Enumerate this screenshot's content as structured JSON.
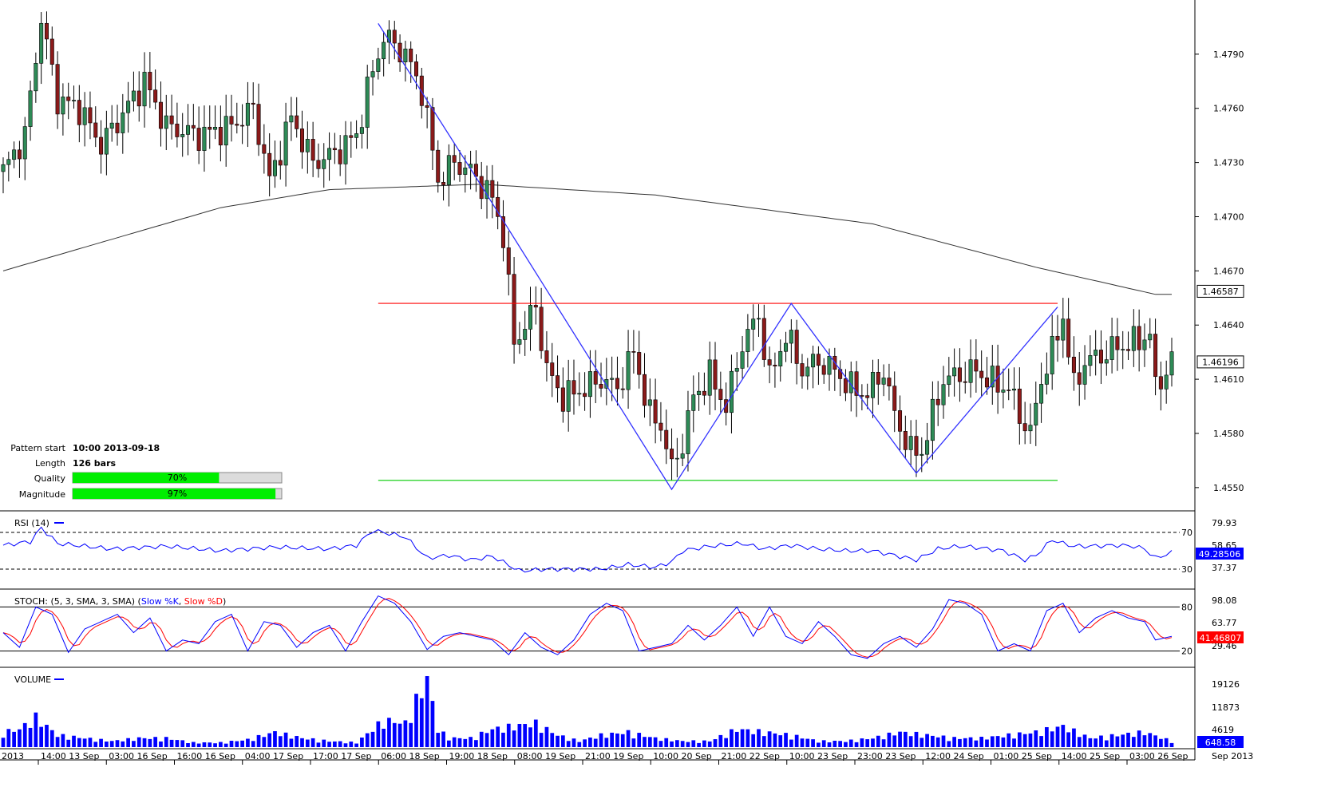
{
  "info_box": {
    "pattern_start_label": "Pattern start",
    "pattern_start_value": "10:00 2013-09-18",
    "length_label": "Length",
    "length_value": "126 bars",
    "quality_label": "Quality",
    "quality_value": "70%",
    "quality_fraction": 0.7,
    "magnitude_label": "Magnitude",
    "magnitude_value": "97%",
    "magnitude_fraction": 0.97
  },
  "colors": {
    "bull": "#2e8b57",
    "bear": "#8b1a1a",
    "ma": "#333333",
    "pattern_line": "#3333ff",
    "resistance": "#ff0000",
    "support": "#00cc00",
    "slow_k": "#0000ff",
    "slow_d": "#ff0000",
    "volume": "#0000ff",
    "bar_fill": "#00ee00",
    "tag_bg": "#0000ff"
  },
  "chart_data": [
    {
      "type": "candlestick",
      "title": "",
      "ylim": [
        1.4538,
        1.482
      ],
      "y_ticks": [
        "1.4790",
        "1.4760",
        "1.4730",
        "1.4700",
        "1.4670",
        "1.4640",
        "1.4610",
        "1.4580",
        "1.4550"
      ],
      "price_tags": {
        "upper": "1.46587",
        "current": "1.46196"
      },
      "price_tag_values": {
        "upper": 1.46587,
        "current": 1.46196
      },
      "resistance_level": 1.4652,
      "support_level": 1.4554,
      "pattern_points": [
        {
          "bar": 69,
          "price": 1.4807
        },
        {
          "bar": 88,
          "price": 1.4717
        },
        {
          "bar": 123,
          "price": 1.4549
        },
        {
          "bar": 145,
          "price": 1.4652
        },
        {
          "bar": 168,
          "price": 1.4558
        },
        {
          "bar": 194,
          "price": 1.465
        }
      ],
      "ma_anchor_points": [
        [
          0,
          1.467
        ],
        [
          40,
          1.4705
        ],
        [
          60,
          1.4715
        ],
        [
          88,
          1.4718
        ],
        [
          120,
          1.4712
        ],
        [
          160,
          1.4696
        ],
        [
          190,
          1.4672
        ],
        [
          212,
          1.4657
        ]
      ],
      "x_tick_labels": [
        "2013",
        "14:00 13 Sep",
        "03:00 16 Sep",
        "16:00 16 Sep",
        "04:00 17 Sep",
        "17:00 17 Sep",
        "06:00 18 Sep",
        "19:00 18 Sep",
        "08:00 19 Sep",
        "21:00 19 Sep",
        "10:00 20 Sep",
        "21:00 22 Sep",
        "10:00 23 Sep",
        "23:00 23 Sep",
        "12:00 24 Sep",
        "01:00 25 Sep",
        "14:00 25 Sep",
        "03:00 26 Sep",
        "Sep 2013"
      ],
      "close_anchors": [
        [
          0,
          1.4725
        ],
        [
          4,
          1.4745
        ],
        [
          7,
          1.481
        ],
        [
          10,
          1.4765
        ],
        [
          14,
          1.476
        ],
        [
          18,
          1.474
        ],
        [
          22,
          1.4757
        ],
        [
          26,
          1.4775
        ],
        [
          30,
          1.475
        ],
        [
          36,
          1.4745
        ],
        [
          42,
          1.475
        ],
        [
          46,
          1.476
        ],
        [
          49,
          1.472
        ],
        [
          53,
          1.4755
        ],
        [
          57,
          1.473
        ],
        [
          61,
          1.4735
        ],
        [
          65,
          1.4745
        ],
        [
          67,
          1.477
        ],
        [
          70,
          1.48
        ],
        [
          74,
          1.479
        ],
        [
          77,
          1.477
        ],
        [
          80,
          1.472
        ],
        [
          83,
          1.473
        ],
        [
          86,
          1.4725
        ],
        [
          88,
          1.4718
        ],
        [
          90,
          1.471
        ],
        [
          92,
          1.469
        ],
        [
          94,
          1.463
        ],
        [
          96,
          1.464
        ],
        [
          98,
          1.465
        ],
        [
          100,
          1.4615
        ],
        [
          103,
          1.46
        ],
        [
          107,
          1.4605
        ],
        [
          110,
          1.461
        ],
        [
          113,
          1.4605
        ],
        [
          116,
          1.4625
        ],
        [
          119,
          1.459
        ],
        [
          121,
          1.4585
        ],
        [
          123,
          1.456
        ],
        [
          125,
          1.4575
        ],
        [
          127,
          1.46
        ],
        [
          130,
          1.4612
        ],
        [
          133,
          1.4595
        ],
        [
          136,
          1.463
        ],
        [
          139,
          1.4645
        ],
        [
          141,
          1.461
        ],
        [
          144,
          1.4635
        ],
        [
          147,
          1.4615
        ],
        [
          150,
          1.462
        ],
        [
          153,
          1.4615
        ],
        [
          156,
          1.4605
        ],
        [
          159,
          1.4602
        ],
        [
          162,
          1.4615
        ],
        [
          164,
          1.459
        ],
        [
          167,
          1.457
        ],
        [
          169,
          1.457
        ],
        [
          171,
          1.459
        ],
        [
          173,
          1.461
        ],
        [
          176,
          1.4612
        ],
        [
          179,
          1.4615
        ],
        [
          182,
          1.4608
        ],
        [
          185,
          1.4605
        ],
        [
          187,
          1.459
        ],
        [
          189,
          1.458
        ],
        [
          191,
          1.461
        ],
        [
          193,
          1.4625
        ],
        [
          195,
          1.4645
        ],
        [
          197,
          1.4605
        ],
        [
          199,
          1.462
        ],
        [
          202,
          1.4623
        ],
        [
          205,
          1.4628
        ],
        [
          208,
          1.463
        ],
        [
          211,
          1.4635
        ],
        [
          212,
          1.4605
        ],
        [
          215,
          1.462
        ]
      ],
      "candle_count": 216
    },
    {
      "type": "line",
      "title": "RSI (14)",
      "ylim": [
        10,
        90
      ],
      "levels": [
        70,
        30
      ],
      "level_labels": [
        "70",
        "30"
      ],
      "y_ticks": [
        "79.93",
        "58.65",
        "37.37"
      ],
      "current_value": "49.28506",
      "anchors": [
        [
          0,
          56
        ],
        [
          5,
          60
        ],
        [
          7,
          75
        ],
        [
          10,
          58
        ],
        [
          15,
          55
        ],
        [
          20,
          52
        ],
        [
          30,
          55
        ],
        [
          40,
          50
        ],
        [
          50,
          54
        ],
        [
          60,
          52
        ],
        [
          65,
          56
        ],
        [
          68,
          72
        ],
        [
          70,
          70
        ],
        [
          74,
          65
        ],
        [
          78,
          42
        ],
        [
          82,
          45
        ],
        [
          86,
          40
        ],
        [
          90,
          44
        ],
        [
          95,
          28
        ],
        [
          100,
          30
        ],
        [
          110,
          30
        ],
        [
          115,
          35
        ],
        [
          120,
          32
        ],
        [
          123,
          38
        ],
        [
          125,
          50
        ],
        [
          130,
          55
        ],
        [
          136,
          58
        ],
        [
          140,
          52
        ],
        [
          145,
          56
        ],
        [
          150,
          52
        ],
        [
          155,
          50
        ],
        [
          160,
          50
        ],
        [
          164,
          45
        ],
        [
          168,
          40
        ],
        [
          172,
          52
        ],
        [
          176,
          55
        ],
        [
          180,
          53
        ],
        [
          184,
          50
        ],
        [
          188,
          40
        ],
        [
          190,
          45
        ],
        [
          193,
          62
        ],
        [
          195,
          58
        ],
        [
          197,
          55
        ],
        [
          200,
          55
        ],
        [
          205,
          56
        ],
        [
          208,
          55
        ],
        [
          210,
          52
        ],
        [
          212,
          42
        ],
        [
          215,
          48
        ]
      ]
    },
    {
      "type": "line",
      "title": "STOCH: (5, 3, SMA, 3, SMA)",
      "legend": [
        "Slow %K",
        "Slow %D"
      ],
      "ylim": [
        0,
        100
      ],
      "levels": [
        80,
        20
      ],
      "level_labels": [
        "80",
        "20"
      ],
      "y_ticks": [
        "98.08",
        "63.77",
        "29.46"
      ],
      "current_value": "41.46807",
      "k_anchors": [
        [
          0,
          45
        ],
        [
          3,
          25
        ],
        [
          6,
          80
        ],
        [
          9,
          70
        ],
        [
          12,
          18
        ],
        [
          15,
          50
        ],
        [
          18,
          60
        ],
        [
          21,
          70
        ],
        [
          24,
          45
        ],
        [
          27,
          65
        ],
        [
          30,
          20
        ],
        [
          33,
          35
        ],
        [
          36,
          30
        ],
        [
          39,
          60
        ],
        [
          42,
          70
        ],
        [
          45,
          20
        ],
        [
          48,
          60
        ],
        [
          51,
          55
        ],
        [
          54,
          25
        ],
        [
          57,
          45
        ],
        [
          60,
          55
        ],
        [
          63,
          20
        ],
        [
          66,
          60
        ],
        [
          69,
          95
        ],
        [
          72,
          85
        ],
        [
          75,
          60
        ],
        [
          78,
          22
        ],
        [
          81,
          40
        ],
        [
          84,
          45
        ],
        [
          87,
          40
        ],
        [
          90,
          35
        ],
        [
          93,
          15
        ],
        [
          96,
          45
        ],
        [
          99,
          25
        ],
        [
          102,
          15
        ],
        [
          105,
          35
        ],
        [
          108,
          70
        ],
        [
          111,
          85
        ],
        [
          114,
          75
        ],
        [
          117,
          20
        ],
        [
          120,
          25
        ],
        [
          123,
          30
        ],
        [
          126,
          55
        ],
        [
          129,
          35
        ],
        [
          132,
          55
        ],
        [
          135,
          80
        ],
        [
          138,
          40
        ],
        [
          141,
          80
        ],
        [
          144,
          40
        ],
        [
          147,
          30
        ],
        [
          150,
          60
        ],
        [
          153,
          40
        ],
        [
          156,
          15
        ],
        [
          159,
          10
        ],
        [
          162,
          30
        ],
        [
          165,
          40
        ],
        [
          168,
          25
        ],
        [
          171,
          50
        ],
        [
          174,
          90
        ],
        [
          177,
          85
        ],
        [
          180,
          70
        ],
        [
          183,
          20
        ],
        [
          186,
          30
        ],
        [
          189,
          20
        ],
        [
          192,
          75
        ],
        [
          195,
          85
        ],
        [
          198,
          45
        ],
        [
          201,
          65
        ],
        [
          204,
          75
        ],
        [
          207,
          65
        ],
        [
          210,
          60
        ],
        [
          212,
          35
        ],
        [
          215,
          40
        ]
      ]
    },
    {
      "type": "bar",
      "title": "VOLUME",
      "ylim": [
        0,
        26000
      ],
      "y_ticks": [
        "19126",
        "11873",
        "4619"
      ],
      "current_value": "648.58",
      "anchors": [
        [
          0,
          5000
        ],
        [
          3,
          6000
        ],
        [
          6,
          10000
        ],
        [
          8,
          7000
        ],
        [
          10,
          4000
        ],
        [
          15,
          3000
        ],
        [
          20,
          2000
        ],
        [
          25,
          3000
        ],
        [
          30,
          3000
        ],
        [
          35,
          1500
        ],
        [
          40,
          1500
        ],
        [
          45,
          2500
        ],
        [
          50,
          5000
        ],
        [
          55,
          3000
        ],
        [
          60,
          2000
        ],
        [
          65,
          1500
        ],
        [
          70,
          9000
        ],
        [
          74,
          8000
        ],
        [
          78,
          23000
        ],
        [
          80,
          6000
        ],
        [
          82,
          3000
        ],
        [
          86,
          3000
        ],
        [
          90,
          6000
        ],
        [
          94,
          7000
        ],
        [
          98,
          8000
        ],
        [
          102,
          4000
        ],
        [
          106,
          2000
        ],
        [
          110,
          4000
        ],
        [
          115,
          5000
        ],
        [
          120,
          3000
        ],
        [
          125,
          2000
        ],
        [
          130,
          2000
        ],
        [
          135,
          6000
        ],
        [
          140,
          5000
        ],
        [
          145,
          4000
        ],
        [
          150,
          2000
        ],
        [
          155,
          2000
        ],
        [
          160,
          3000
        ],
        [
          165,
          5000
        ],
        [
          170,
          4000
        ],
        [
          175,
          3000
        ],
        [
          180,
          3000
        ],
        [
          185,
          4000
        ],
        [
          190,
          5000
        ],
        [
          195,
          7000
        ],
        [
          200,
          3000
        ],
        [
          205,
          4000
        ],
        [
          210,
          5000
        ],
        [
          215,
          2000
        ]
      ]
    }
  ]
}
